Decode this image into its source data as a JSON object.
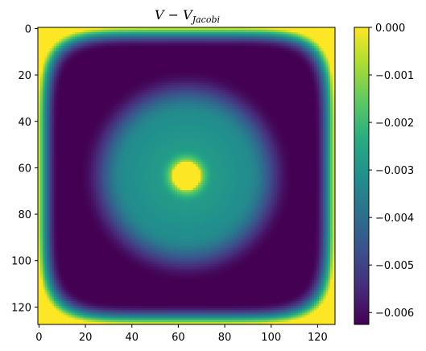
{
  "chart_data": {
    "type": "heatmap",
    "title_main": "V − V",
    "title_sub": "Jacobi",
    "grid": false,
    "xlim": [
      -0.5,
      127.5
    ],
    "ylim": [
      127.5,
      -0.5
    ],
    "x_ticks": [
      0,
      20,
      40,
      60,
      80,
      100,
      120
    ],
    "y_ticks": [
      0,
      20,
      40,
      60,
      80,
      100,
      120
    ],
    "colorbar": {
      "range": [
        -0.00625,
        0.0
      ],
      "ticks": [
        0.0,
        -0.001,
        -0.002,
        -0.003,
        -0.004,
        -0.005,
        -0.006
      ],
      "tick_labels": [
        "0.000",
        "−0.001",
        "−0.002",
        "−0.003",
        "−0.004",
        "−0.005",
        "−0.006"
      ],
      "colormap": "viridis"
    },
    "grid_size": 128,
    "field_description_values": {
      "center": [
        63.5,
        63.5
      ],
      "center_blob_radius": 6,
      "center_value": 0.0,
      "dark_ring_value": -0.00625,
      "mid_ring_value": -0.0032,
      "boundary_value": 0.0
    }
  }
}
